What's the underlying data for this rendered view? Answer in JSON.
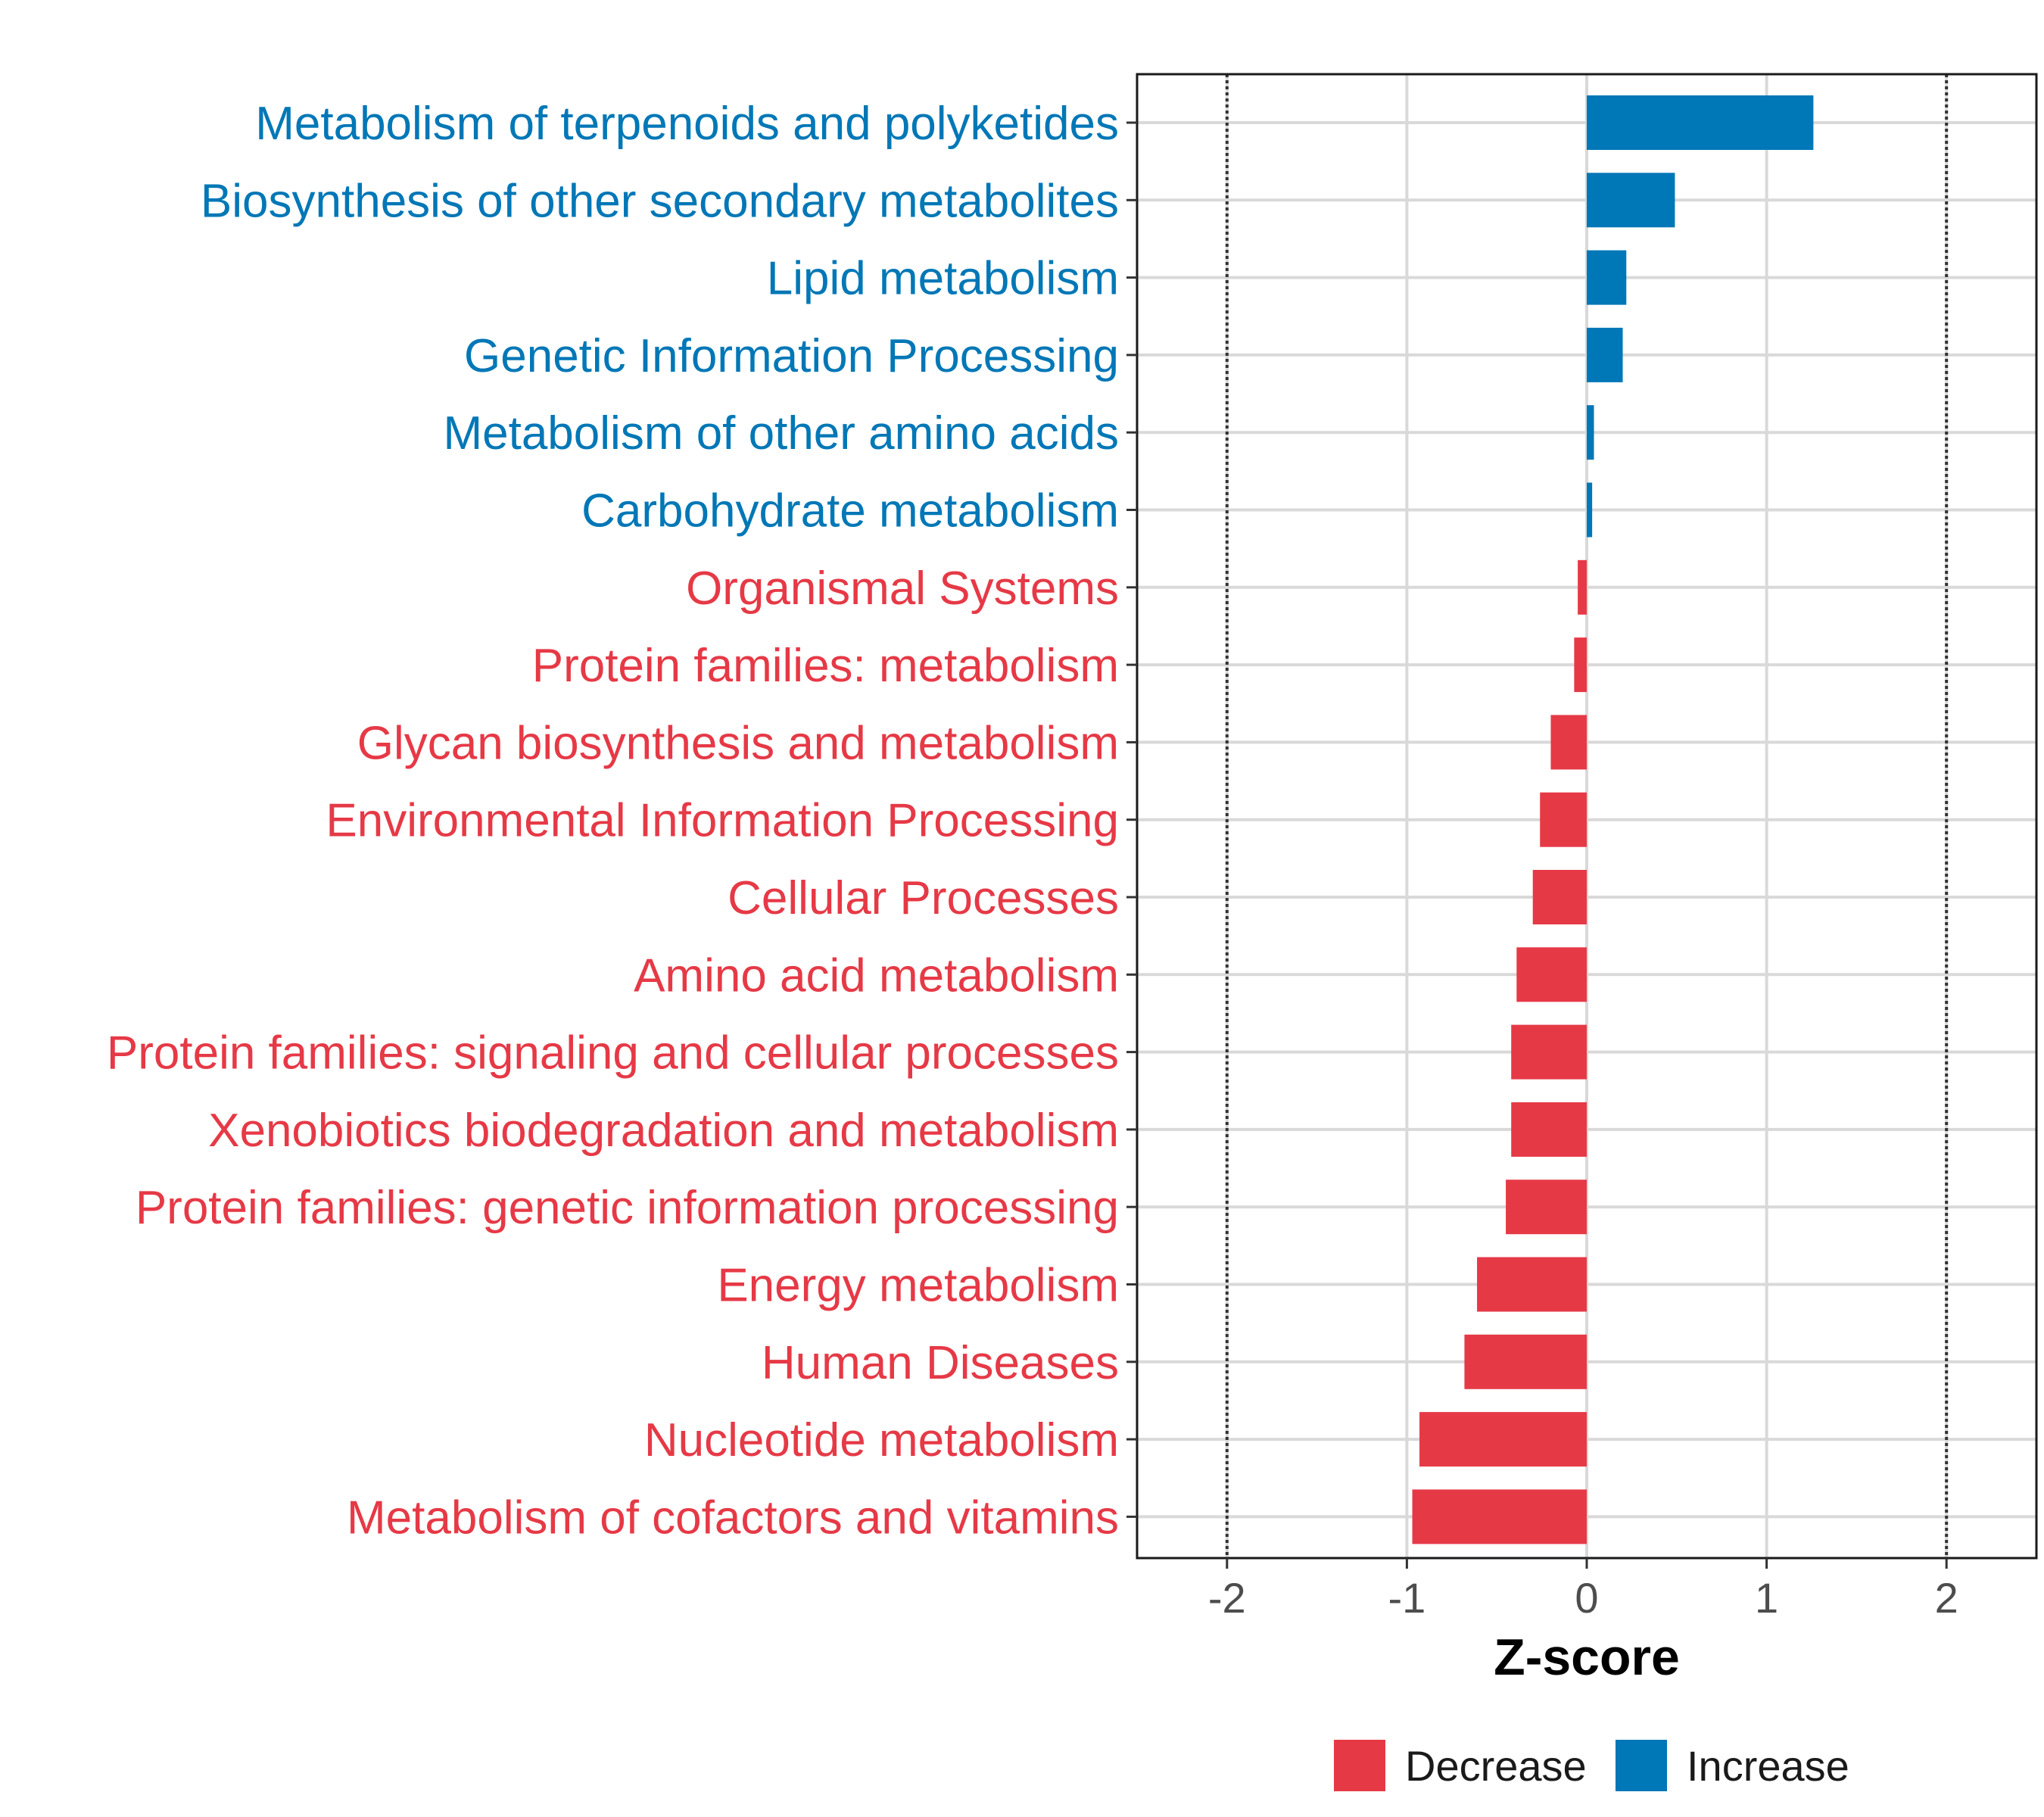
{
  "chart_data": {
    "type": "bar",
    "orientation": "horizontal",
    "title": "",
    "xlabel": "Z-score",
    "ylabel": "",
    "xlim": [
      -2.5,
      2.5
    ],
    "xticks": [
      -2,
      -1,
      0,
      1,
      2
    ],
    "xtick_labels": [
      "-2",
      "-1",
      "0",
      "1",
      "2"
    ],
    "reference_lines": [
      -2,
      2
    ],
    "grid": true,
    "legend_position": "bottom",
    "colors": {
      "Decrease": "#e63946",
      "Increase": "#0077b6"
    },
    "legend": [
      {
        "label": "Decrease",
        "color": "#e63946"
      },
      {
        "label": "Increase",
        "color": "#0077b6"
      }
    ],
    "categories": [
      "Metabolism of terpenoids and polyketides",
      "Biosynthesis of other secondary metabolites",
      "Lipid metabolism",
      "Genetic Information Processing",
      "Metabolism of other amino acids",
      "Carbohydrate metabolism",
      "Organismal Systems",
      "Protein families: metabolism",
      "Glycan biosynthesis and metabolism",
      "Environmental Information Processing",
      "Cellular Processes",
      "Amino acid metabolism",
      "Protein families: signaling and cellular processes",
      "Xenobiotics biodegradation and metabolism",
      "Protein families: genetic information processing",
      "Energy metabolism",
      "Human Diseases",
      "Nucleotide metabolism",
      "Metabolism of cofactors and vitamins"
    ],
    "values": [
      1.26,
      0.49,
      0.22,
      0.2,
      0.04,
      0.03,
      -0.05,
      -0.07,
      -0.2,
      -0.26,
      -0.3,
      -0.39,
      -0.42,
      -0.42,
      -0.45,
      -0.61,
      -0.68,
      -0.93,
      -0.97
    ]
  }
}
